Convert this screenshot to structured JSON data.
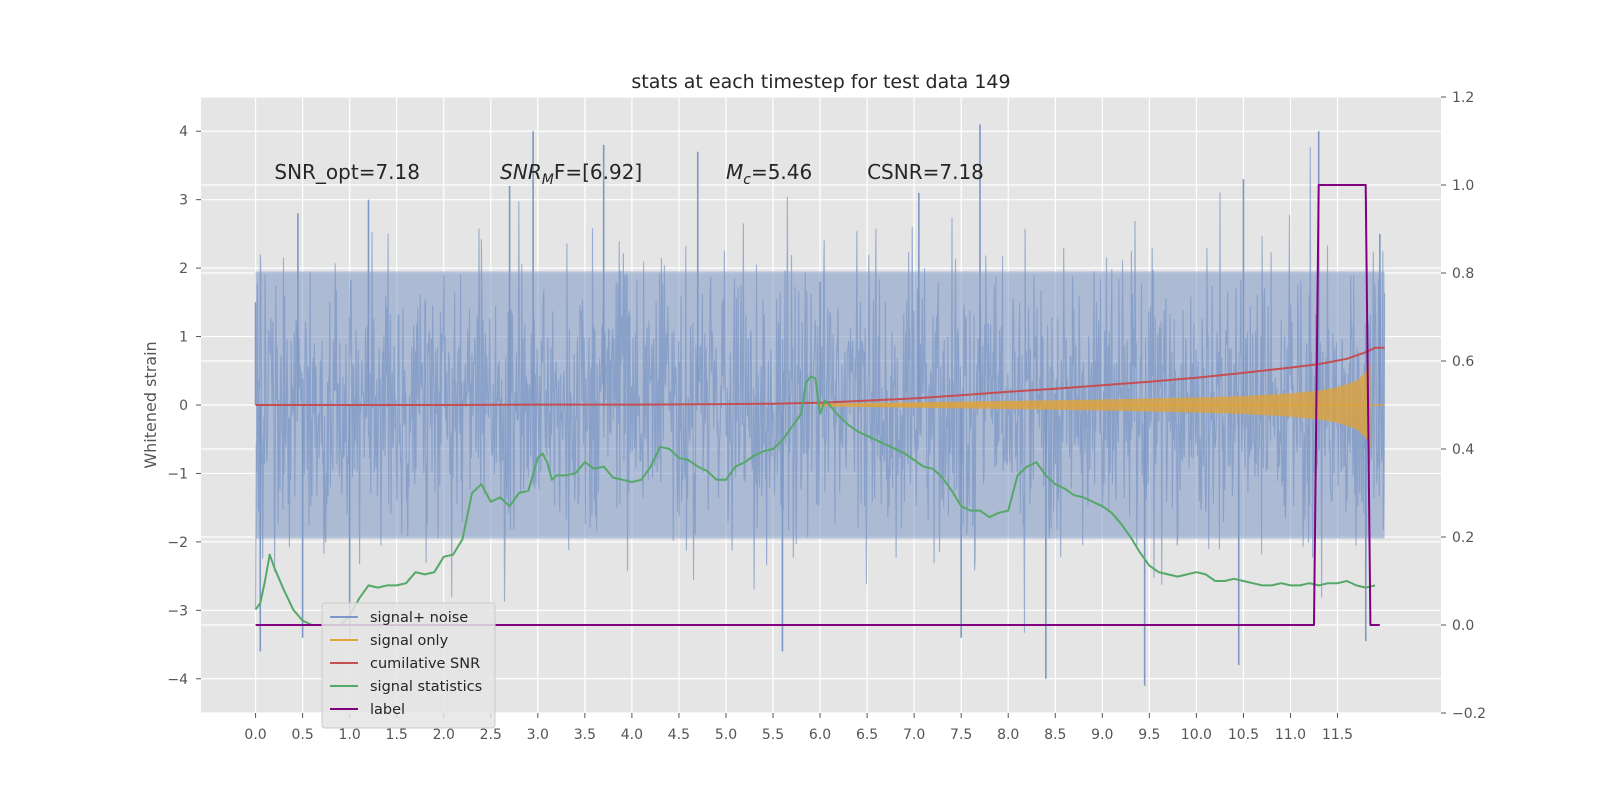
{
  "chart_data": {
    "type": "line",
    "title": "stats at each timestep for test data 149",
    "ylabel": "Whitened strain",
    "xlabel": "",
    "xlim": [
      -0.58,
      12.6
    ],
    "ylim": [
      -4.5,
      4.5
    ],
    "y2lim": [
      -0.2,
      1.2
    ],
    "xticks": [
      0.0,
      0.5,
      1.0,
      1.5,
      2.0,
      2.5,
      3.0,
      3.5,
      4.0,
      4.5,
      5.0,
      5.5,
      6.0,
      6.5,
      7.0,
      7.5,
      8.0,
      8.5,
      9.0,
      9.5,
      10.0,
      10.5,
      11.0,
      11.5
    ],
    "xtick_labels": [
      "0.0",
      "0.5",
      "1.0",
      "1.5",
      "2.0",
      "2.5",
      "3.0",
      "3.5",
      "4.0",
      "4.5",
      "5.0",
      "5.5",
      "6.0",
      "6.5",
      "7.0",
      "7.5",
      "8.0",
      "8.5",
      "9.0",
      "9.5",
      "10.0",
      "10.5",
      "11.0",
      "11.5"
    ],
    "yticks": [
      -4,
      -3,
      -2,
      -1,
      0,
      1,
      2,
      3,
      4
    ],
    "ytick_labels": [
      "−4",
      "−3",
      "−2",
      "−1",
      "0",
      "1",
      "2",
      "3",
      "4"
    ],
    "y2ticks": [
      -0.2,
      0.0,
      0.2,
      0.4,
      0.6,
      0.8,
      1.0,
      1.2
    ],
    "y2tick_labels": [
      "−0.2",
      "0.0",
      "0.2",
      "0.4",
      "0.6",
      "0.8",
      "1.0",
      "1.2"
    ],
    "grid": true,
    "legend_position": "lower-left",
    "annotations": [
      {
        "pre": "SNR_opt=7.18",
        "italic": "",
        "sub": "",
        "post": "",
        "x": 0.2,
        "y": 3.3
      },
      {
        "pre": "",
        "italic": "SNR",
        "sub": "M",
        "post": "F=[6.92]",
        "x": 2.6,
        "y": 3.3
      },
      {
        "pre": "",
        "italic": "M",
        "sub": "c",
        "post": "=5.46",
        "x": 5.0,
        "y": 3.3
      },
      {
        "pre": "CSNR=7.18",
        "italic": "",
        "sub": "",
        "post": "",
        "x": 6.5,
        "y": 3.3
      }
    ],
    "series": [
      {
        "name": "signal+ noise",
        "kind": "noise_band",
        "axis": "left",
        "color": "#7d98c4",
        "x_start": 0.0,
        "x_end": 12.0,
        "band_upper_typical": 1.95,
        "band_lower_typical": -1.95,
        "peaks_x": [
          0.0,
          0.45,
          1.2,
          2.7,
          2.95,
          3.7,
          4.7,
          6.0,
          7.05,
          7.7,
          10.5,
          11.3,
          11.95
        ],
        "peaks_y": [
          1.5,
          2.8,
          3.0,
          3.2,
          4.0,
          3.8,
          3.7,
          1.8,
          3.1,
          4.1,
          3.3,
          4.0,
          2.5
        ],
        "troughs_x": [
          0.05,
          0.5,
          1.0,
          5.6,
          7.5,
          8.4,
          9.45,
          10.45,
          11.8
        ],
        "troughs_y": [
          -3.6,
          -3.4,
          -3.4,
          -3.6,
          -3.4,
          -4.0,
          -4.1,
          -3.8,
          -3.45
        ]
      },
      {
        "name": "signal only",
        "kind": "chirp",
        "axis": "left",
        "color": "#e0a33a",
        "x": [
          6.0,
          7.0,
          8.0,
          9.0,
          10.0,
          10.5,
          11.0,
          11.3,
          11.5,
          11.7,
          11.8,
          11.85
        ],
        "envelope": [
          0.02,
          0.04,
          0.06,
          0.08,
          0.11,
          0.13,
          0.17,
          0.21,
          0.26,
          0.35,
          0.48,
          0.62
        ]
      },
      {
        "name": "cumilative SNR",
        "axis": "right",
        "color": "#c44e52",
        "x": [
          0.0,
          1.0,
          2.0,
          3.0,
          4.0,
          5.0,
          5.5,
          6.0,
          6.5,
          7.0,
          7.5,
          8.0,
          8.5,
          9.0,
          9.5,
          10.0,
          10.5,
          11.0,
          11.3,
          11.6,
          11.8,
          11.9,
          12.0
        ],
        "y": [
          0.5,
          0.5,
          0.5,
          0.501,
          0.501,
          0.502,
          0.503,
          0.505,
          0.51,
          0.515,
          0.522,
          0.53,
          0.537,
          0.545,
          0.553,
          0.562,
          0.573,
          0.585,
          0.593,
          0.605,
          0.62,
          0.63,
          0.63
        ]
      },
      {
        "name": "signal statistics",
        "axis": "right",
        "color": "#55a868",
        "x": [
          0.0,
          0.05,
          0.1,
          0.15,
          0.2,
          0.3,
          0.4,
          0.5,
          0.6,
          0.75,
          0.9,
          1.0,
          1.1,
          1.2,
          1.3,
          1.4,
          1.5,
          1.6,
          1.7,
          1.8,
          1.9,
          2.0,
          2.1,
          2.2,
          2.3,
          2.4,
          2.5,
          2.6,
          2.7,
          2.8,
          2.9,
          3.0,
          3.05,
          3.1,
          3.15,
          3.2,
          3.3,
          3.4,
          3.5,
          3.6,
          3.7,
          3.8,
          3.9,
          4.0,
          4.1,
          4.2,
          4.3,
          4.4,
          4.5,
          4.6,
          4.7,
          4.8,
          4.9,
          5.0,
          5.1,
          5.2,
          5.3,
          5.4,
          5.5,
          5.6,
          5.7,
          5.8,
          5.85,
          5.9,
          5.95,
          6.0,
          6.05,
          6.1,
          6.2,
          6.3,
          6.4,
          6.5,
          6.6,
          6.7,
          6.8,
          6.9,
          7.0,
          7.1,
          7.2,
          7.3,
          7.4,
          7.5,
          7.6,
          7.7,
          7.8,
          7.9,
          8.0,
          8.1,
          8.2,
          8.3,
          8.4,
          8.5,
          8.6,
          8.7,
          8.8,
          8.9,
          9.0,
          9.1,
          9.2,
          9.3,
          9.4,
          9.5,
          9.6,
          9.7,
          9.8,
          9.9,
          10.0,
          10.1,
          10.2,
          10.3,
          10.4,
          10.5,
          10.6,
          10.7,
          10.8,
          10.9,
          11.0,
          11.1,
          11.2,
          11.3,
          11.4,
          11.5,
          11.6,
          11.7,
          11.8,
          11.9
        ],
        "y": [
          0.035,
          0.05,
          0.1,
          0.16,
          0.13,
          0.08,
          0.035,
          0.01,
          0.0,
          0.0,
          0.0,
          0.02,
          0.06,
          0.09,
          0.085,
          0.09,
          0.09,
          0.095,
          0.12,
          0.115,
          0.12,
          0.155,
          0.16,
          0.195,
          0.3,
          0.32,
          0.28,
          0.29,
          0.27,
          0.3,
          0.305,
          0.38,
          0.39,
          0.37,
          0.33,
          0.34,
          0.34,
          0.345,
          0.37,
          0.355,
          0.36,
          0.335,
          0.33,
          0.325,
          0.33,
          0.36,
          0.405,
          0.4,
          0.38,
          0.375,
          0.36,
          0.35,
          0.33,
          0.33,
          0.36,
          0.37,
          0.385,
          0.395,
          0.4,
          0.42,
          0.45,
          0.48,
          0.55,
          0.565,
          0.56,
          0.48,
          0.51,
          0.5,
          0.475,
          0.455,
          0.44,
          0.43,
          0.42,
          0.41,
          0.4,
          0.39,
          0.375,
          0.36,
          0.355,
          0.335,
          0.305,
          0.27,
          0.26,
          0.26,
          0.245,
          0.255,
          0.26,
          0.34,
          0.36,
          0.37,
          0.34,
          0.32,
          0.31,
          0.295,
          0.29,
          0.28,
          0.27,
          0.255,
          0.23,
          0.2,
          0.165,
          0.135,
          0.12,
          0.115,
          0.11,
          0.115,
          0.12,
          0.115,
          0.1,
          0.1,
          0.105,
          0.1,
          0.095,
          0.09,
          0.09,
          0.095,
          0.09,
          0.09,
          0.095,
          0.09,
          0.095,
          0.095,
          0.1,
          0.09,
          0.085,
          0.09
        ]
      },
      {
        "name": "label",
        "axis": "right",
        "color": "#800080",
        "x": [
          0.0,
          11.25,
          11.3,
          11.8,
          11.85,
          11.95
        ],
        "y": [
          0.0,
          0.0,
          1.0,
          1.0,
          0.0,
          0.0
        ]
      }
    ]
  }
}
